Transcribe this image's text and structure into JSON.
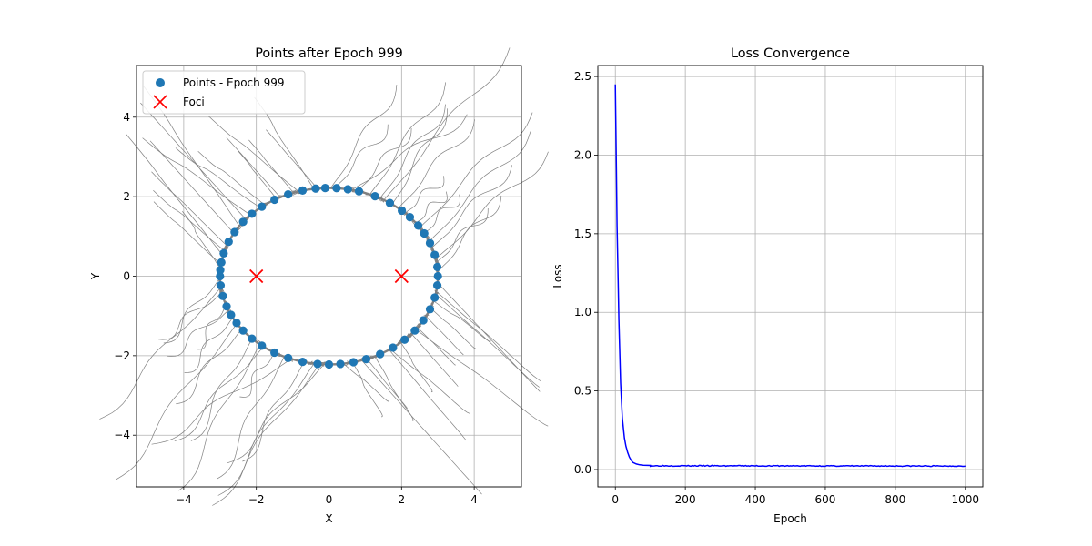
{
  "chart_data": [
    {
      "type": "scatter",
      "title": "Points after Epoch 999",
      "xlabel": "X",
      "ylabel": "Y",
      "xlim": [
        -5.3,
        5.3
      ],
      "ylim": [
        -5.3,
        5.3
      ],
      "xticks": [
        -4,
        -2,
        0,
        2,
        4
      ],
      "yticks": [
        -4,
        -2,
        0,
        2,
        4
      ],
      "xtick_labels": [
        "−4",
        "−2",
        "0",
        "2",
        "4"
      ],
      "ytick_labels": [
        "−4",
        "−2",
        "0",
        "2",
        "4"
      ],
      "grid": true,
      "legend_position": "upper-left",
      "legend": [
        "Points - Epoch 999",
        "Foci"
      ],
      "ellipse": {
        "a": 3.0,
        "b": 2.22
      },
      "point_angles_deg": [
        0,
        6,
        14,
        22,
        29,
        35,
        42,
        48,
        56,
        65,
        74,
        80,
        86,
        92,
        97,
        104,
        112,
        120,
        128,
        135,
        142,
        150,
        157,
        165,
        171,
        176,
        180,
        186,
        193,
        200,
        206,
        212,
        218,
        225,
        232,
        240,
        248,
        256,
        264,
        270,
        276,
        283,
        290,
        298,
        306,
        314,
        322,
        330,
        338,
        346,
        354
      ],
      "foci": [
        [
          -2,
          0
        ],
        [
          2,
          0
        ]
      ],
      "series": [
        {
          "name": "Points - Epoch 999",
          "color": "#1f77b4"
        },
        {
          "name": "Foci",
          "color": "#ff0000"
        }
      ],
      "trajectory_color": "#808080"
    },
    {
      "type": "line",
      "title": "Loss Convergence",
      "xlabel": "Epoch",
      "ylabel": "Loss",
      "xlim": [
        -50,
        1050
      ],
      "ylim": [
        -0.11,
        2.57
      ],
      "xticks": [
        0,
        200,
        400,
        600,
        800,
        1000
      ],
      "yticks": [
        0.0,
        0.5,
        1.0,
        1.5,
        2.0,
        2.5
      ],
      "xtick_labels": [
        "0",
        "200",
        "400",
        "600",
        "800",
        "1000"
      ],
      "ytick_labels": [
        "0.0",
        "0.5",
        "1.0",
        "1.5",
        "2.0",
        "2.5"
      ],
      "grid": true,
      "series": [
        {
          "color": "#0000ff",
          "x": [
            0,
            3,
            5,
            8,
            10,
            13,
            15,
            18,
            20,
            23,
            26,
            30,
            35,
            40,
            45,
            50,
            60,
            70,
            80,
            100,
            120,
            150,
            200,
            300,
            400,
            500,
            600,
            700,
            800,
            900,
            1000
          ],
          "y": [
            2.45,
            1.9,
            1.55,
            1.2,
            0.95,
            0.72,
            0.55,
            0.42,
            0.33,
            0.26,
            0.2,
            0.15,
            0.11,
            0.08,
            0.06,
            0.045,
            0.035,
            0.03,
            0.028,
            0.026,
            0.025,
            0.025,
            0.024,
            0.023,
            0.023,
            0.022,
            0.022,
            0.022,
            0.022,
            0.022,
            0.022
          ]
        }
      ]
    }
  ]
}
